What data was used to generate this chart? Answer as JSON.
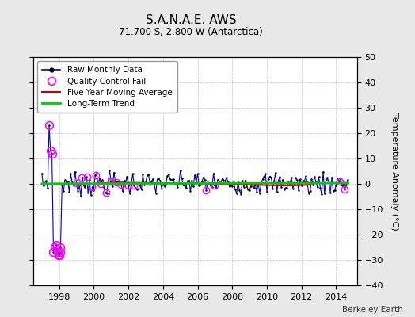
{
  "title": "S.A.N.A.E. AWS",
  "subtitle": "71.700 S, 2.800 W (Antarctica)",
  "ylabel": "Temperature Anomaly (°C)",
  "attribution": "Berkeley Earth",
  "xlim": [
    1996.5,
    2015.2
  ],
  "ylim": [
    -40,
    50
  ],
  "yticks": [
    -40,
    -30,
    -20,
    -10,
    0,
    10,
    20,
    30,
    40,
    50
  ],
  "xticks": [
    1998,
    2000,
    2002,
    2004,
    2006,
    2008,
    2010,
    2012,
    2014
  ],
  "bg_color": "#e8e8e8",
  "plot_bg_color": "#ffffff",
  "raw_line_color": "#0000cc",
  "raw_marker_color": "#000000",
  "qc_fail_color": "#ff00ff",
  "moving_avg_color": "#cc0000",
  "trend_color": "#00cc00",
  "spike_times": [
    1997.42,
    1997.5,
    1997.58,
    1997.67,
    1997.75,
    1997.83,
    1997.92,
    1997.96,
    1998.0,
    1998.04,
    1998.08
  ],
  "spike_vals": [
    23,
    13,
    12,
    -27,
    -25,
    -24,
    -27,
    -28,
    -28,
    -27,
    -25
  ],
  "main_seed": 7,
  "qc_seed": 13
}
